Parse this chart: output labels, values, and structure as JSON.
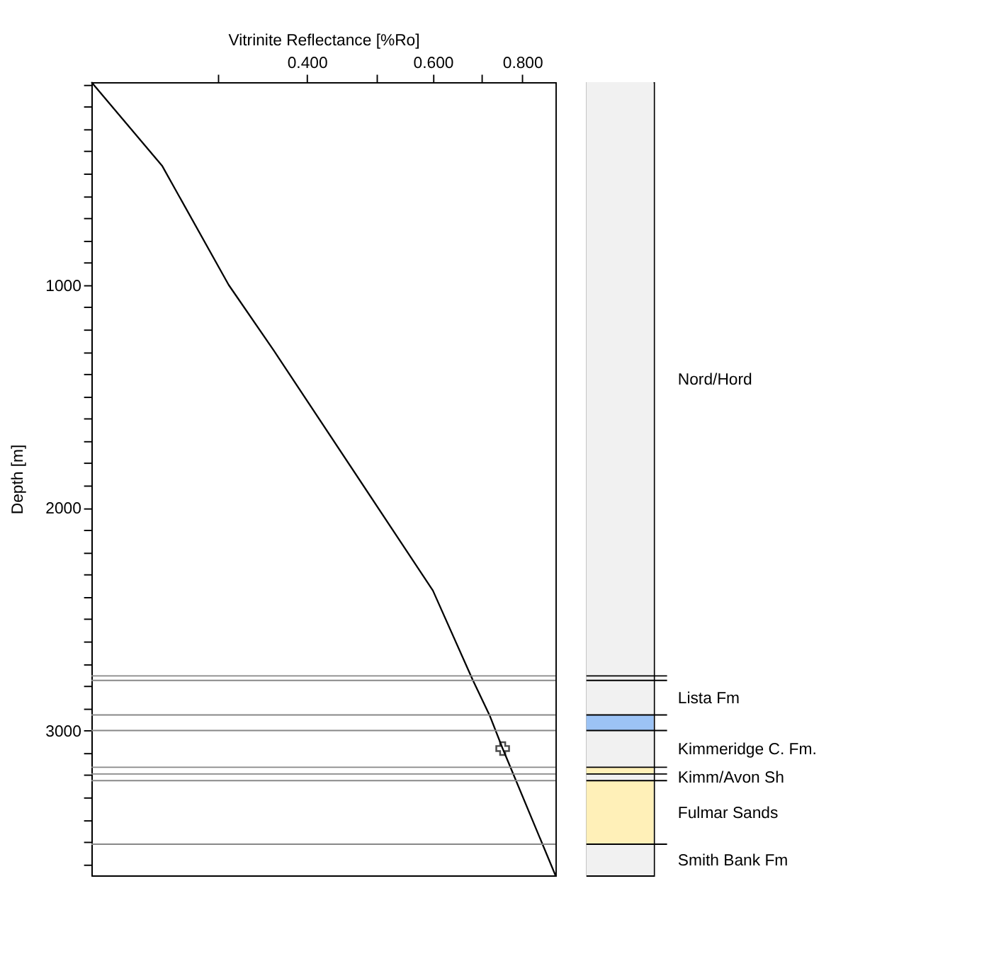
{
  "chart_data": [
    {
      "type": "line",
      "xlabel": "Vitrinite Reflectance [%Ro]",
      "ylabel": "Depth [m]",
      "log": "x",
      "xlim": [
        0.2,
        0.89
      ],
      "xticks": [
        {
          "value": 0.3,
          "label": null
        },
        {
          "value": 0.4,
          "label": "0.400"
        },
        {
          "value": 0.5,
          "label": null
        },
        {
          "value": 0.6,
          "label": "0.600"
        },
        {
          "value": 0.7,
          "label": null
        },
        {
          "value": 0.8,
          "label": "0.800"
        }
      ],
      "ylim": [
        3650,
        90
      ],
      "yticks": [
        {
          "value": 100,
          "label": null
        },
        {
          "value": 200,
          "label": null
        },
        {
          "value": 300,
          "label": null
        },
        {
          "value": 400,
          "label": null
        },
        {
          "value": 500,
          "label": null
        },
        {
          "value": 600,
          "label": null
        },
        {
          "value": 700,
          "label": null
        },
        {
          "value": 800,
          "label": null
        },
        {
          "value": 900,
          "label": null
        },
        1000,
        {
          "value": 1100,
          "label": null
        },
        {
          "value": 1200,
          "label": null
        },
        {
          "value": 1300,
          "label": null
        },
        {
          "value": 1400,
          "label": null
        },
        {
          "value": 1500,
          "label": null
        },
        {
          "value": 1600,
          "label": null
        },
        {
          "value": 1700,
          "label": null
        },
        {
          "value": 1800,
          "label": null
        },
        {
          "value": 1900,
          "label": null
        },
        2000,
        {
          "value": 2100,
          "label": null
        },
        {
          "value": 2200,
          "label": null
        },
        {
          "value": 2300,
          "label": null
        },
        {
          "value": 2400,
          "label": null
        },
        {
          "value": 2500,
          "label": null
        },
        {
          "value": 2600,
          "label": null
        },
        {
          "value": 2700,
          "label": null
        },
        {
          "value": 2800,
          "label": null
        },
        {
          "value": 2900,
          "label": null
        },
        3000,
        {
          "value": 3100,
          "label": null
        },
        {
          "value": 3200,
          "label": null
        },
        {
          "value": 3300,
          "label": null
        },
        {
          "value": 3400,
          "label": null
        },
        {
          "value": 3500,
          "label": null
        },
        {
          "value": 3600,
          "label": null
        }
      ],
      "series": [
        {
          "color": "#000000",
          "x": [
            0.2,
            0.251,
            0.311,
            0.36,
            0.6,
            0.682,
            0.721,
            0.751,
            0.89
          ],
          "values": [
            90,
            465,
            1000,
            1297,
            2372,
            2773,
            2936,
            3081,
            3650
          ]
        },
        {
          "type": "scatter",
          "color": "#000000",
          "marker": "cross",
          "x": [
            0.751
          ],
          "values": [
            3081
          ]
        }
      ],
      "ref_lines": [
        {
          "axis": "y",
          "value": 2755
        },
        {
          "axis": "y",
          "value": 2775
        },
        {
          "axis": "y",
          "value": 2930
        },
        {
          "axis": "y",
          "value": 3000
        },
        {
          "axis": "y",
          "value": 3165
        },
        {
          "axis": "y",
          "value": 3195
        },
        {
          "axis": "y",
          "value": 3225
        },
        {
          "axis": "y",
          "value": 3510
        }
      ]
    },
    {
      "type": "bar",
      "categories": [
        null
      ],
      "ylim": [
        3650,
        90
      ],
      "tick_labels": false,
      "series": [
        {
          "name": "Nord/Hord",
          "color": "#f1f1f1",
          "base": [
            90
          ],
          "values": [
            2665
          ]
        },
        {
          "color": "#f1f1f1",
          "base": [
            2755
          ],
          "values": [
            20
          ]
        },
        {
          "name": "Lista Fm",
          "color": "#f1f1f1",
          "base": [
            2775
          ],
          "values": [
            155
          ]
        },
        {
          "color": "#9cc3f5",
          "base": [
            2930
          ],
          "values": [
            70
          ]
        },
        {
          "name": "Kimmeridge C. Fm.",
          "color": "#f1f1f1",
          "base": [
            3000
          ],
          "values": [
            165
          ]
        },
        {
          "color": "#fff0b8",
          "base": [
            3165
          ],
          "values": [
            30
          ]
        },
        {
          "name": "Kimm/Avon Sh",
          "color": "#f1f1f1",
          "base": [
            3195
          ],
          "values": [
            30
          ]
        },
        {
          "name": "Fulmar Sands",
          "color": "#fff0b8",
          "base": [
            3225
          ],
          "values": [
            285
          ]
        },
        {
          "name": "Smith Bank Fm",
          "color": "#f1f1f1",
          "base": [
            3510
          ],
          "values": [
            140
          ]
        }
      ],
      "ref_lines": [
        {
          "axis": "y",
          "value": 2755
        },
        {
          "axis": "y",
          "value": 2775
        },
        {
          "axis": "y",
          "value": 2930
        },
        {
          "axis": "y",
          "value": 3000
        },
        {
          "axis": "y",
          "value": 3165
        },
        {
          "axis": "y",
          "value": 3195
        },
        {
          "axis": "y",
          "value": 3225
        },
        {
          "axis": "y",
          "value": 3510
        }
      ]
    }
  ]
}
